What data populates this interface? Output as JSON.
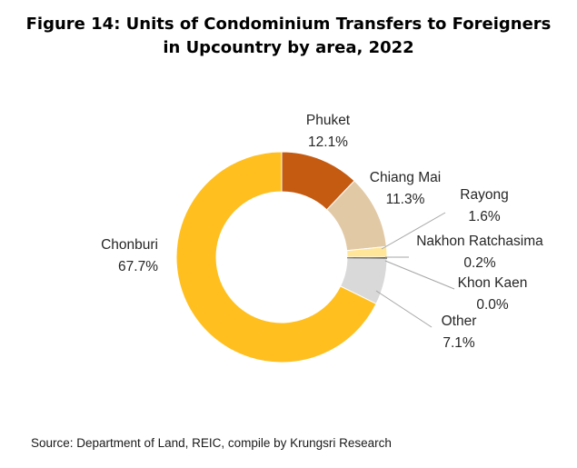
{
  "title_line1": "Figure 14: Units of Condominium  Transfers  to Foreigners",
  "title_line2": "in Upcountry  by area, 2022",
  "source": "Source: Department of Land, REIC, compile by Krungsri Research",
  "chart_data": {
    "type": "pie",
    "variant": "donut",
    "title": "Figure 14: Units of Condominium Transfers to Foreigners in Upcountry by area, 2022",
    "unit": "%",
    "slices": [
      {
        "name": "Phuket",
        "label": "12.1%",
        "value": 12.1,
        "color": "#C55A11"
      },
      {
        "name": "Chiang Mai",
        "label": "11.3%",
        "value": 11.3,
        "color": "#E2C9A6"
      },
      {
        "name": "Rayong",
        "label": "1.6%",
        "value": 1.6,
        "color": "#FFE699"
      },
      {
        "name": "Nakhon Ratchasima",
        "label": "0.2%",
        "value": 0.2,
        "color": "#595959"
      },
      {
        "name": "Khon Kaen",
        "label": "0.0%",
        "value": 0.0,
        "color": "#8C8C8C"
      },
      {
        "name": "Other",
        "label": "7.1%",
        "value": 7.1,
        "color": "#D9D9D9"
      },
      {
        "name": "Chonburi",
        "label": "67.7%",
        "value": 67.7,
        "color": "#FFBF1F"
      }
    ]
  }
}
